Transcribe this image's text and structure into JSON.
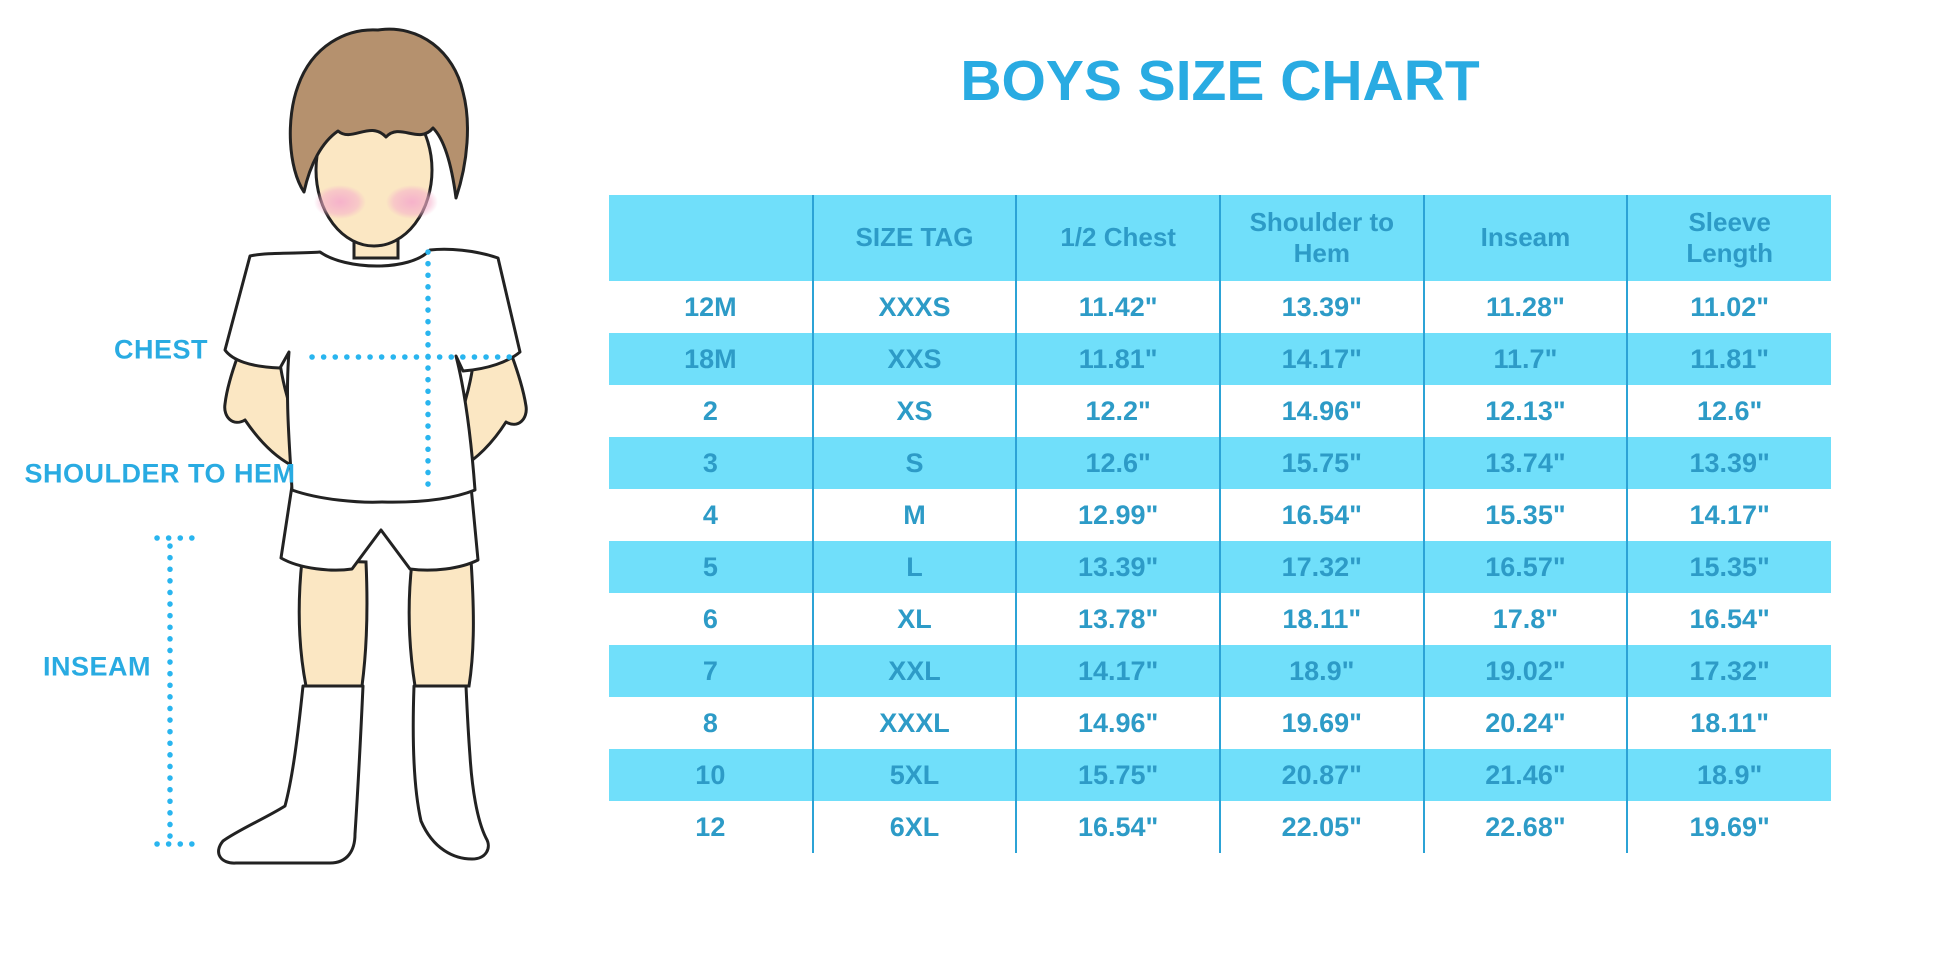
{
  "title": "BOYS SIZE CHART",
  "illustration": {
    "labels": {
      "chest": "CHEST",
      "shoulder_to_hem": "SHOULDER TO HEM",
      "inseam": "INSEAM"
    }
  },
  "chart_data": {
    "type": "table",
    "title": "BOYS SIZE CHART",
    "headers": [
      "",
      "SIZE TAG",
      "1/2 Chest",
      "Shoulder to Hem",
      "Inseam",
      "Sleeve Length"
    ],
    "rows": [
      [
        "12M",
        "XXXS",
        "11.42\"",
        "13.39\"",
        "11.28\"",
        "11.02\""
      ],
      [
        "18M",
        "XXS",
        "11.81\"",
        "14.17\"",
        "11.7\"",
        "11.81\""
      ],
      [
        "2",
        "XS",
        "12.2\"",
        "14.96\"",
        "12.13\"",
        "12.6\""
      ],
      [
        "3",
        "S",
        "12.6\"",
        "15.75\"",
        "13.74\"",
        "13.39\""
      ],
      [
        "4",
        "M",
        "12.99\"",
        "16.54\"",
        "15.35\"",
        "14.17\""
      ],
      [
        "5",
        "L",
        "13.39\"",
        "17.32\"",
        "16.57\"",
        "15.35\""
      ],
      [
        "6",
        "XL",
        "13.78\"",
        "18.11\"",
        "17.8\"",
        "16.54\""
      ],
      [
        "7",
        "XXL",
        "14.17\"",
        "18.9\"",
        "19.02\"",
        "17.32\""
      ],
      [
        "8",
        "XXXL",
        "14.96\"",
        "19.69\"",
        "20.24\"",
        "18.11\""
      ],
      [
        "10",
        "5XL",
        "15.75\"",
        "20.87\"",
        "21.46\"",
        "18.9\""
      ],
      [
        "12",
        "6XL",
        "16.54\"",
        "22.05\"",
        "22.68\"",
        "19.69\""
      ]
    ],
    "layout": {
      "striped": true,
      "stripe_rows": [
        "18M",
        "3",
        "5",
        "7",
        "10"
      ],
      "header_background": "#70DFFA",
      "stripe_background": "#70DFFA",
      "grid": "vertical-dividers-only"
    }
  },
  "colors": {
    "accent_title": "#29ABE2",
    "table_text": "#2D9BC7",
    "stripe_blue": "#70DFFA",
    "divider_blue": "#2CA3D6",
    "dotted_line_blue": "#29B5EF",
    "skin": "#FBE7C3",
    "hair_brown": "#B5916E",
    "outline": "#222222",
    "cheek_pink": "#F5AFCB"
  }
}
